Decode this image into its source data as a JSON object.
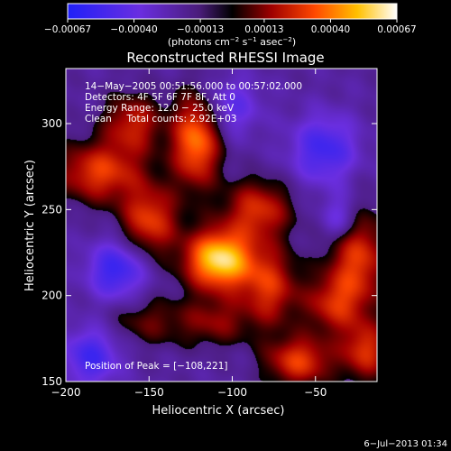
{
  "chart_data": {
    "type": "heatmap",
    "title": "Reconstructed RHESSI Image",
    "xlabel": "Heliocentric X (arcsec)",
    "ylabel": "Heliocentric Y (arcsec)",
    "xlim": [
      -200,
      -13
    ],
    "ylim": [
      150,
      332
    ],
    "x_ticks": [
      -200,
      -150,
      -100,
      -50
    ],
    "x_tick_labels": [
      "−200",
      "−150",
      "−100",
      "−50"
    ],
    "y_ticks": [
      150,
      200,
      250,
      300
    ],
    "y_tick_labels": [
      "150",
      "200",
      "250",
      "300"
    ],
    "colorbar": {
      "range": [
        -0.00067,
        0.00067
      ],
      "ticks": [
        -0.00067,
        -0.0004,
        -0.00013,
        0.00013,
        0.0004,
        0.00067
      ],
      "tick_labels": [
        "−0.00067",
        "−0.00040",
        "−0.00013",
        "0.00013",
        "0.00040",
        "0.00067"
      ],
      "units_text": "(photons cm",
      "units_exp1": "−2",
      "units_mid": " s",
      "units_exp2": "−1",
      "units_mid2": " asec",
      "units_exp3": "−2",
      "units_end": ")"
    },
    "annotations": {
      "time_range": "14−May−2005 00:51:56.000 to 00:57:02.000",
      "detectors": "Detectors: 4F 5F 6F 7F 8F, Att 0",
      "energy": "Energy Range: 12.0 − 25.0 keV",
      "clean": "Clean     Total counts: 2.92E+03",
      "peak": "Position of Peak = [−108,221]"
    },
    "peak": {
      "x": -108,
      "y": 221
    },
    "blobs": [
      {
        "x": -108,
        "y": 221,
        "sx": 14,
        "sy": 12,
        "amp": 1.0
      },
      {
        "x": -122,
        "y": 290,
        "sx": 10,
        "sy": 18,
        "amp": 0.72
      },
      {
        "x": -180,
        "y": 272,
        "sx": 18,
        "sy": 12,
        "amp": 0.55
      },
      {
        "x": -150,
        "y": 244,
        "sx": 12,
        "sy": 14,
        "amp": 0.55
      },
      {
        "x": -160,
        "y": 300,
        "sx": 12,
        "sy": 12,
        "amp": 0.45
      },
      {
        "x": -85,
        "y": 250,
        "sx": 14,
        "sy": 12,
        "amp": 0.5
      },
      {
        "x": -78,
        "y": 205,
        "sx": 12,
        "sy": 16,
        "amp": 0.5
      },
      {
        "x": -25,
        "y": 222,
        "sx": 12,
        "sy": 20,
        "amp": 0.55
      },
      {
        "x": -40,
        "y": 195,
        "sx": 12,
        "sy": 12,
        "amp": 0.42
      },
      {
        "x": -60,
        "y": 162,
        "sx": 14,
        "sy": 10,
        "amp": 0.55
      },
      {
        "x": -20,
        "y": 168,
        "sx": 10,
        "sy": 12,
        "amp": 0.5
      },
      {
        "x": -150,
        "y": 185,
        "sx": 18,
        "sy": 10,
        "amp": 0.25
      },
      {
        "x": -110,
        "y": 185,
        "sx": 14,
        "sy": 10,
        "amp": 0.3
      }
    ],
    "holes": [
      {
        "x": -170,
        "y": 215,
        "sx": 12,
        "sy": 12,
        "amp": -0.5
      },
      {
        "x": -45,
        "y": 285,
        "sx": 14,
        "sy": 14,
        "amp": -0.45
      },
      {
        "x": -185,
        "y": 165,
        "sx": 12,
        "sy": 12,
        "amp": -0.45
      },
      {
        "x": -100,
        "y": 310,
        "sx": 12,
        "sy": 12,
        "amp": -0.3
      },
      {
        "x": -35,
        "y": 245,
        "sx": 8,
        "sy": 10,
        "amp": -0.35
      }
    ]
  },
  "footer": {
    "timestamp": "6−Jul−2013 01:34"
  }
}
